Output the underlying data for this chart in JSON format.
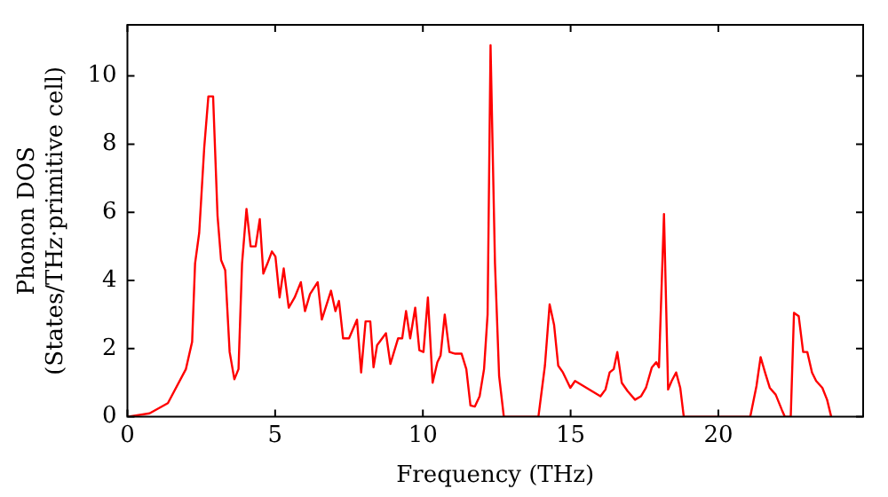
{
  "chart_data": {
    "type": "line",
    "xlabel": "Frequency (THz)",
    "ylabel": "Phonon DOS\n(States/THz·primitive cell)",
    "xlim": [
      0,
      24.9
    ],
    "xticks": [
      0,
      5,
      10,
      15,
      20
    ],
    "ylim": [
      0,
      11.5
    ],
    "yticks": [
      0,
      2,
      4,
      6,
      8,
      10
    ],
    "grid": false,
    "legend": false,
    "marker": "none",
    "line_style": "solid",
    "series": [
      {
        "color": "#ff0000",
        "x": [
          0,
          0.75,
          1.37,
          1.98,
          2.19,
          2.29,
          2.43,
          2.6,
          2.74,
          2.9,
          3.05,
          3.17,
          3.31,
          3.46,
          3.62,
          3.76,
          3.88,
          4.03,
          4.17,
          4.34,
          4.48,
          4.6,
          4.74,
          4.89,
          5.01,
          5.15,
          5.29,
          5.46,
          5.66,
          5.87,
          6.01,
          6.18,
          6.44,
          6.58,
          6.89,
          7.04,
          7.16,
          7.3,
          7.5,
          7.77,
          7.91,
          8.06,
          8.22,
          8.33,
          8.45,
          8.75,
          8.9,
          9.16,
          9.3,
          9.43,
          9.57,
          9.74,
          9.88,
          10.02,
          10.17,
          10.33,
          10.49,
          10.6,
          10.74,
          10.9,
          11.1,
          11.31,
          11.47,
          11.61,
          11.76,
          11.92,
          12.07,
          12.19,
          12.29,
          12.44,
          12.58,
          12.74,
          13.91,
          14.13,
          14.29,
          14.44,
          14.58,
          14.74,
          14.99,
          15.15,
          16.01,
          16.18,
          16.32,
          16.46,
          16.58,
          16.73,
          16.93,
          17.18,
          17.38,
          17.55,
          17.75,
          17.9,
          17.99,
          18.16,
          18.3,
          18.42,
          18.57,
          18.71,
          18.83,
          21.08,
          21.29,
          21.43,
          21.58,
          21.74,
          21.94,
          22.15,
          22.25,
          22.45,
          22.56,
          22.72,
          22.87,
          23.01,
          23.17,
          23.31,
          23.52,
          23.68,
          23.82
        ],
        "values": [
          0,
          0.1,
          0.4,
          1.4,
          2.2,
          4.5,
          5.4,
          7.9,
          9.4,
          9.4,
          5.9,
          4.6,
          4.3,
          1.9,
          1.1,
          1.4,
          4.5,
          6.1,
          5,
          5,
          5.8,
          4.2,
          4.5,
          4.85,
          4.7,
          3.5,
          4.35,
          3.2,
          3.5,
          3.95,
          3.1,
          3.6,
          3.95,
          2.85,
          3.7,
          3.1,
          3.4,
          2.3,
          2.3,
          2.85,
          1.3,
          2.8,
          2.8,
          1.45,
          2.1,
          2.45,
          1.55,
          2.3,
          2.3,
          3.1,
          2.3,
          3.2,
          1.95,
          1.9,
          3.5,
          1,
          1.6,
          1.8,
          3,
          1.9,
          1.85,
          1.85,
          1.4,
          0.33,
          0.3,
          0.6,
          1.4,
          3,
          10.9,
          4.5,
          1.2,
          0,
          0,
          1.5,
          3.3,
          2.7,
          1.5,
          1.3,
          0.85,
          1.05,
          0.6,
          0.8,
          1.3,
          1.4,
          1.9,
          1,
          0.75,
          0.5,
          0.6,
          0.85,
          1.45,
          1.6,
          1.45,
          5.95,
          0.8,
          1.05,
          1.3,
          0.85,
          0,
          0,
          0.9,
          1.75,
          1.3,
          0.85,
          0.65,
          0.2,
          0,
          0,
          3.05,
          2.95,
          1.9,
          1.9,
          1.3,
          1.05,
          0.85,
          0.5,
          0
        ]
      }
    ]
  }
}
